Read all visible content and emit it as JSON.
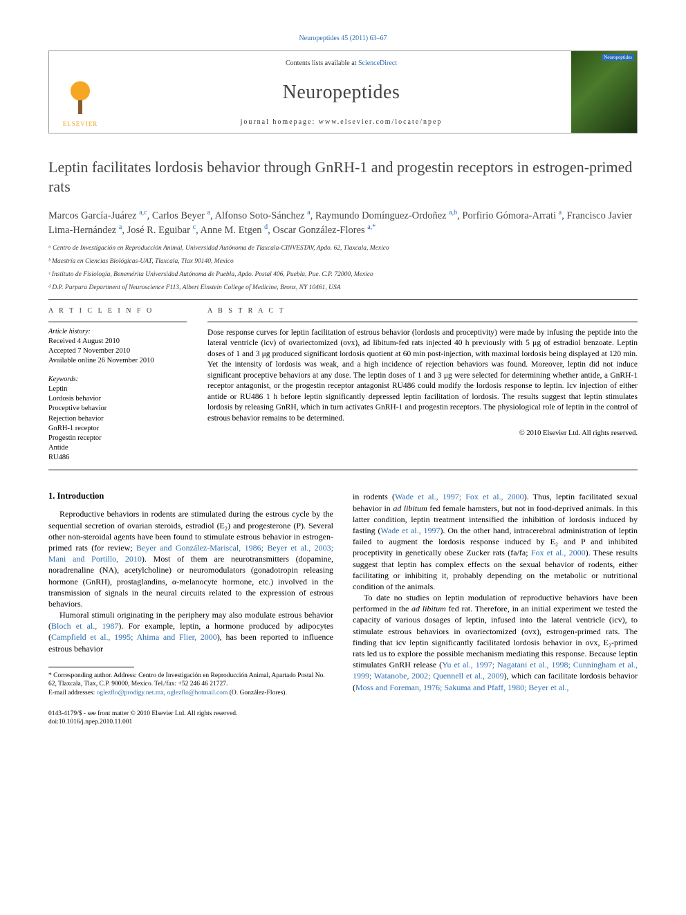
{
  "meta": {
    "citation": "Neuropeptides 45 (2011) 63–67",
    "contents_prefix": "Contents lists available at ",
    "contents_link": "ScienceDirect",
    "journal_name": "Neuropeptides",
    "homepage_prefix": "journal homepage: ",
    "homepage_url": "www.elsevier.com/locate/npep",
    "publisher_label": "ELSEVIER",
    "cover_label": "Neuropeptides"
  },
  "title": "Leptin facilitates lordosis behavior through GnRH-1 and progestin receptors in estrogen-primed rats",
  "authors_html": "Marcos García-Juárez <sup>a,c</sup>, Carlos Beyer <sup>a</sup>, Alfonso Soto-Sánchez <sup>a</sup>, Raymundo Domínguez-Ordoñez <sup>a,b</sup>, Porfirio Gómora-Arrati <sup>a</sup>, Francisco Javier Lima-Hernández <sup>a</sup>, José R. Eguibar <sup>c</sup>, Anne M. Etgen <sup>d</sup>, Oscar González-Flores <sup>a,*</sup>",
  "affiliations": [
    "ᵃ Centro de Investigación en Reproducción Animal, Universidad Autónoma de Tlaxcala-CINVESTAV, Apdo. 62, Tlaxcala, Mexico",
    "ᵇ Maestría en Ciencias Biológicas-UAT, Tlaxcala, Tlax 90140, Mexico",
    "ᶜ Instituto de Fisiología, Benemérita Universidad Autónoma de Puebla, Apdo. Postal 406, Puebla, Pue. C.P. 72000, Mexico",
    "ᵈ D.P. Purpura Department of Neuroscience F113, Albert Einstein College of Medicine, Bronx, NY 10461, USA"
  ],
  "info": {
    "section_label": "A R T I C L E   I N F O",
    "history_label": "Article history:",
    "history": [
      "Received 4 August 2010",
      "Accepted 7 November 2010",
      "Available online 26 November 2010"
    ],
    "keywords_label": "Keywords:",
    "keywords": [
      "Leptin",
      "Lordosis behavior",
      "Proceptive behavior",
      "Rejection behavior",
      "GnRH-1 receptor",
      "Progestin receptor",
      "Antide",
      "RU486"
    ]
  },
  "abstract": {
    "section_label": "A B S T R A C T",
    "text": "Dose response curves for leptin facilitation of estrous behavior (lordosis and proceptivity) were made by infusing the peptide into the lateral ventricle (icv) of ovariectomized (ovx), ad libitum-fed rats injected 40 h previously with 5 μg of estradiol benzoate. Leptin doses of 1 and 3 μg produced significant lordosis quotient at 60 min post-injection, with maximal lordosis being displayed at 120 min. Yet the intensity of lordosis was weak, and a high incidence of rejection behaviors was found. Moreover, leptin did not induce significant proceptive behaviors at any dose. The leptin doses of 1 and 3 μg were selected for determining whether antide, a GnRH-1 receptor antagonist, or the progestin receptor antagonist RU486 could modify the lordosis response to leptin. Icv injection of either antide or RU486 1 h before leptin significantly depressed leptin facilitation of lordosis. The results suggest that leptin stimulates lordosis by releasing GnRH, which in turn activates GnRH-1 and progestin receptors. The physiological role of leptin in the control of estrous behavior remains to be determined.",
    "copyright": "© 2010 Elsevier Ltd. All rights reserved."
  },
  "intro": {
    "heading": "1. Introduction",
    "p1_pre": "Reproductive behaviors in rodents are stimulated during the estrous cycle by the sequential secretion of ovarian steroids, estradiol (E₂) and progesterone (P). Several other non-steroidal agents have been found to stimulate estrous behavior in estrogen-primed rats (for review; ",
    "p1_ref": "Beyer and González-Mariscal, 1986; Beyer et al., 2003; Mani and Portillo, 2010",
    "p1_post": "). Most of them are neurotransmitters (dopamine, noradrenaline (NA), acetylcholine) or neuromodulators (gonadotropin releasing hormone (GnRH), prostaglandins, α-melanocyte hormone, etc.) involved in the transmission of signals in the neural circuits related to the expression of estrous behaviors.",
    "p2_pre": "Humoral stimuli originating in the periphery may also modulate estrous behavior (",
    "p2_ref1": "Bloch et al., 1987",
    "p2_mid1": "). For example, leptin, a hormone produced by adipocytes (",
    "p2_ref2": "Campfield et al., 1995; Ahima and Flier, 2000",
    "p2_post": "), has been reported to influence estrous behavior",
    "p3_pre": "in rodents (",
    "p3_ref1": "Wade et al., 1997; Fox et al., 2000",
    "p3_mid1": "). Thus, leptin facilitated sexual behavior in ",
    "p3_em1": "ad libitum",
    "p3_mid2": " fed female hamsters, but not in food-deprived animals. In this latter condition, leptin treatment intensified the inhibition of lordosis induced by fasting (",
    "p3_ref2": "Wade et al., 1997",
    "p3_mid3": "). On the other hand, intracerebral administration of leptin failed to augment the lordosis response induced by E₂ and P and inhibited proceptivity in genetically obese Zucker rats (fa/fa; ",
    "p3_ref3": "Fox et al., 2000",
    "p3_post": "). These results suggest that leptin has complex effects on the sexual behavior of rodents, either facilitating or inhibiting it, probably depending on the metabolic or nutritional condition of the animals.",
    "p4_pre": "To date no studies on leptin modulation of reproductive behaviors have been performed in the ",
    "p4_em1": "ad libitum",
    "p4_mid1": " fed rat. Therefore, in an initial experiment we tested the capacity of various dosages of leptin, infused into the lateral ventricle (icv), to stimulate estrous behaviors in ovariectomized (ovx), estrogen-primed rats. The finding that icv leptin significantly facilitated lordosis behavior in ovx, E₂-primed rats led us to explore the possible mechanism mediating this response. Because leptin stimulates GnRH release (",
    "p4_ref1": "Yu et al., 1997; Nagatani et al., 1998; Cunningham et al., 1999; Watanobe, 2002; Quennell et al., 2009",
    "p4_mid2": "), which can facilitate lordosis behavior (",
    "p4_ref2": "Moss and Foreman, 1976; Sakuma and Pfaff, 1980; Beyer et al.,",
    "p4_post": ""
  },
  "footnote": {
    "corresponding": "* Corresponding author. Address: Centro de Investigación en Reproducción Animal, Apartado Postal No. 62, Tlaxcala, Tlax, C.P. 90000, Mexico. Tel./fax: +52 246 46 21727.",
    "email_label": "E-mail addresses: ",
    "email1": "oglezflo@prodigy.net.mx",
    "email_sep": ", ",
    "email2": "oglezflo@hotmail.com",
    "email_post": " (O. González-Flores)."
  },
  "footer": {
    "line1": "0143-4179/$ - see front matter © 2010 Elsevier Ltd. All rights reserved.",
    "line2": "doi:10.1016/j.npep.2010.11.001"
  }
}
